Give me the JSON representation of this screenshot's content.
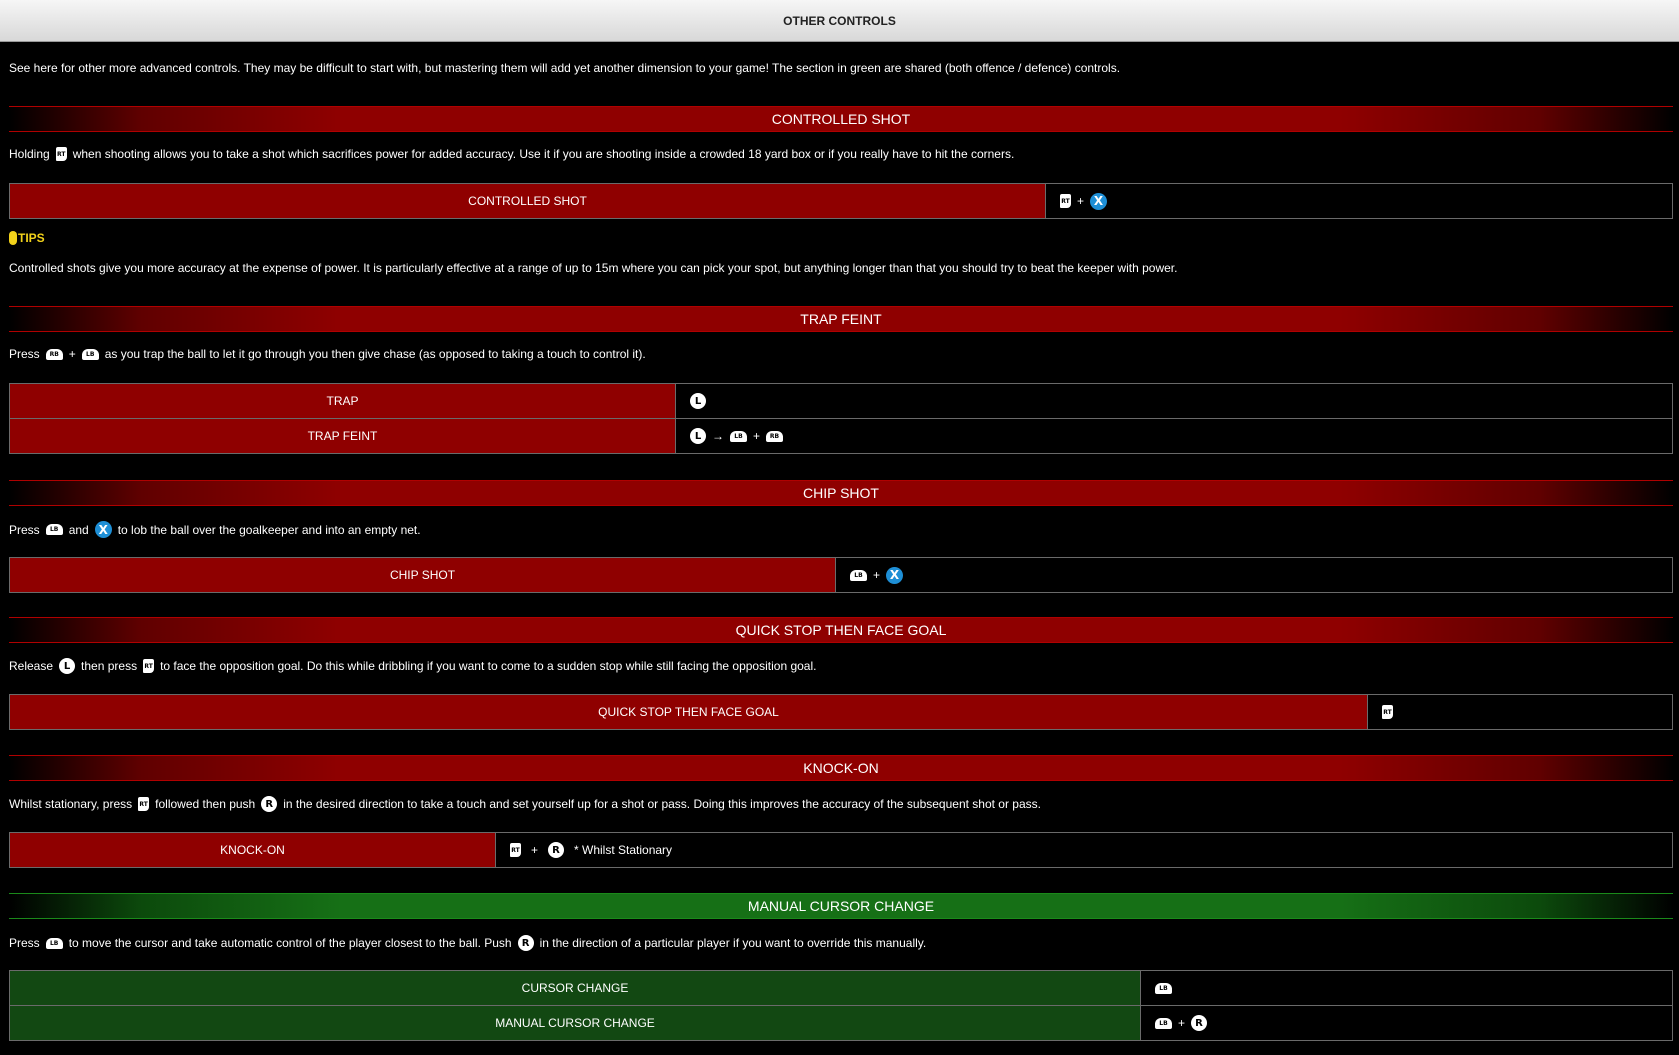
{
  "header": {
    "title": "OTHER CONTROLS"
  },
  "intro": "See here for other more advanced controls. They may be difficult to start with, but mastering them will add yet another dimension to your game! The section in green are shared (both offence / defence) controls.",
  "icons": {
    "rt": "RT",
    "lb": "LB",
    "rb": "RB",
    "x": "X",
    "ls": "L",
    "rs": "R",
    "plus": "+",
    "arrow": "→"
  },
  "controlled_shot": {
    "heading": "CONTROLLED SHOT",
    "desc_a": "Holding",
    "desc_b": "when shooting allows you to take a shot which sacrifices power for added accuracy. Use it if you are shooting inside a crowded 18 yard box or if you really have to hit the corners.",
    "row_label": "CONTROLLED SHOT",
    "tips_label": "TIPS",
    "tips_text": "Controlled shots give you more accuracy at the expense of power. It is particularly effective at a range of up to 15m where you can pick your spot, but anything longer than that you should try to beat the keeper with power."
  },
  "trap_feint": {
    "heading": "TRAP FEINT",
    "desc_a": "Press",
    "desc_b": "as you trap the ball to let it go through you then give chase (as opposed to taking a touch to control it).",
    "row1_label": "TRAP",
    "row2_label": "TRAP FEINT"
  },
  "chip_shot": {
    "heading": "CHIP SHOT",
    "desc_a": "Press",
    "desc_and": "and",
    "desc_b": "to lob the ball over the goalkeeper and into an empty net.",
    "row_label": "CHIP SHOT"
  },
  "quick_stop": {
    "heading": "QUICK STOP THEN FACE GOAL",
    "desc_a": "Release",
    "desc_then": "then press",
    "desc_b": "to face the opposition goal. Do this while dribbling if you want to come to a sudden stop while still facing the opposition goal.",
    "row_label": "QUICK STOP THEN FACE GOAL"
  },
  "knock_on": {
    "heading": "KNOCK-ON",
    "desc_a": "Whilst stationary, press",
    "desc_mid": "followed then push",
    "desc_b": "in the desired direction to take a touch and set yourself up for a shot or pass. Doing this improves the accuracy of the subsequent shot or pass.",
    "row_label": "KNOCK-ON",
    "note": "* Whilst Stationary"
  },
  "manual_cursor": {
    "heading": "MANUAL CURSOR CHANGE",
    "desc_a": "Press",
    "desc_mid": "to move the cursor and take automatic control of the player closest to the ball. Push",
    "desc_b": "in the direction of a particular player if you want to override this manually.",
    "row1_label": "CURSOR CHANGE",
    "row2_label": "MANUAL CURSOR CHANGE"
  }
}
